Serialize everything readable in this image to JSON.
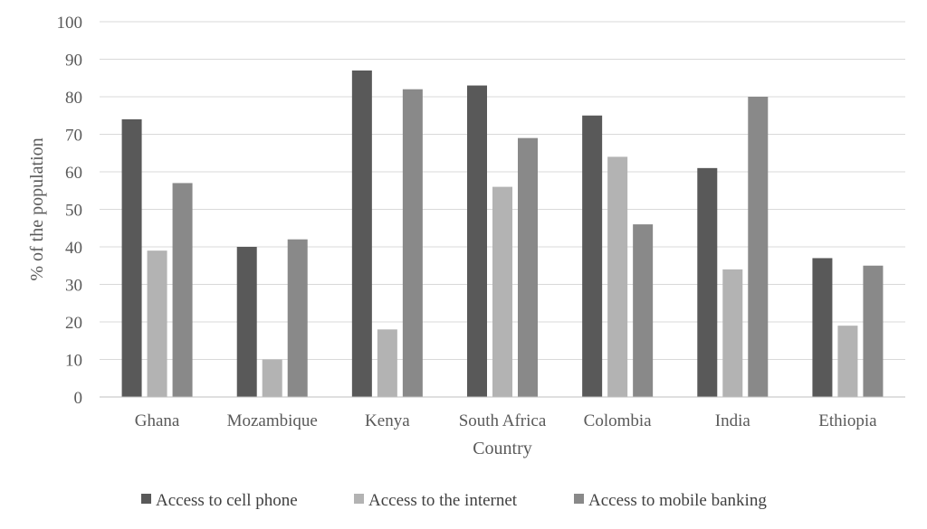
{
  "chart_data": {
    "type": "bar",
    "title": "",
    "xlabel": "Country",
    "ylabel": "% of the population",
    "ylim": [
      0,
      100
    ],
    "yticks": [
      0,
      10,
      20,
      30,
      40,
      50,
      60,
      70,
      80,
      90,
      100
    ],
    "grid": true,
    "legend_position": "bottom",
    "categories": [
      "Ghana",
      "Mozambique",
      "Kenya",
      "South Africa",
      "Colombia",
      "India",
      "Ethiopia"
    ],
    "series": [
      {
        "name": "Access to cell phone",
        "color": "#595959",
        "values": [
          74,
          40,
          87,
          83,
          75,
          61,
          37
        ]
      },
      {
        "name": "Access to the internet",
        "color": "#b3b3b3",
        "values": [
          39,
          10,
          18,
          56,
          64,
          34,
          19
        ]
      },
      {
        "name": "Access to mobile banking",
        "color": "#898989",
        "values": [
          57,
          42,
          82,
          69,
          46,
          80,
          35
        ]
      }
    ]
  }
}
